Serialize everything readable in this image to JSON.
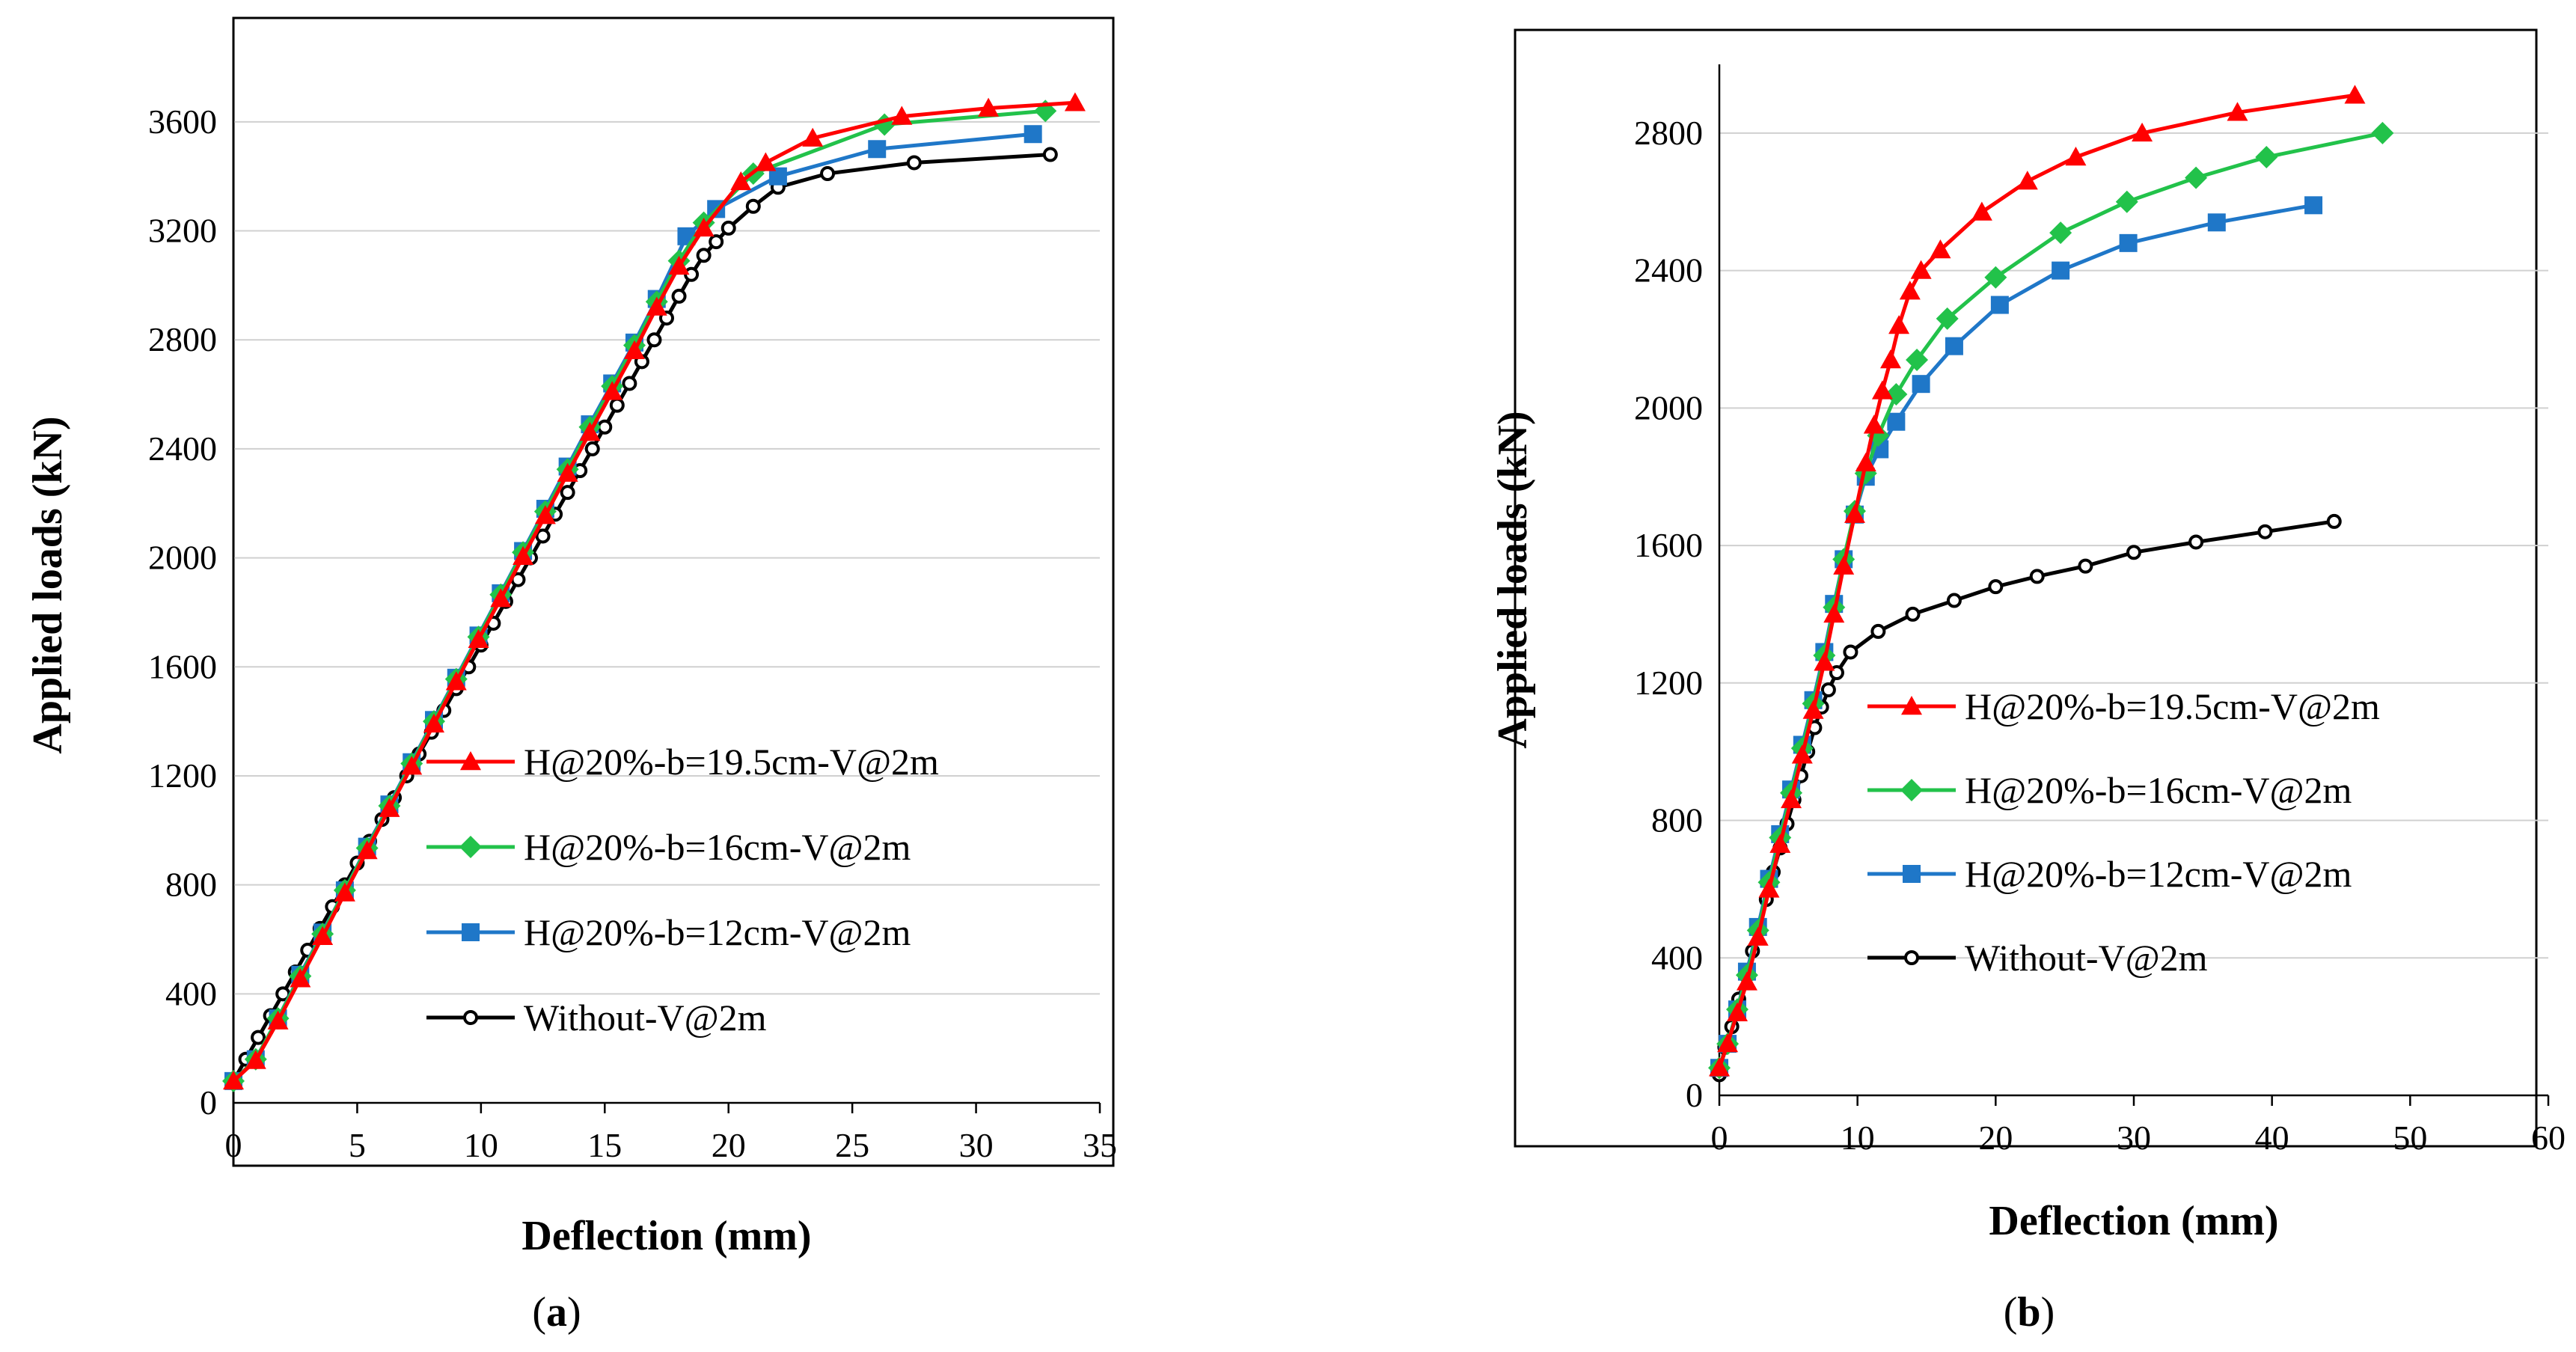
{
  "chart_data": [
    {
      "type": "line",
      "panel_label": "a",
      "xlabel": "Deflection (mm)",
      "ylabel": "Applied loads (kN)",
      "xlim": [
        0,
        35
      ],
      "ylim": [
        0,
        3800
      ],
      "xticks": [
        0,
        5,
        10,
        15,
        20,
        25,
        30,
        35
      ],
      "yticks": [
        0,
        400,
        800,
        1200,
        1600,
        2000,
        2400,
        2800,
        3200,
        3600
      ],
      "grid": "horizontal",
      "legend_position": "bottom-right",
      "series": [
        {
          "name": "H@20%-b=19.5cm-V@2m",
          "color": "#ff0000",
          "marker": "triangle",
          "x": [
            0,
            0.9,
            1.8,
            2.7,
            3.6,
            4.5,
            5.4,
            6.3,
            7.2,
            8.1,
            9.0,
            9.9,
            10.8,
            11.7,
            12.6,
            13.5,
            14.4,
            15.3,
            16.2,
            17.1,
            18.0,
            19.0,
            20.5,
            21.5,
            23.4,
            27.0,
            30.5,
            34.0
          ],
          "y": [
            80,
            155,
            300,
            455,
            610,
            770,
            925,
            1080,
            1235,
            1390,
            1545,
            1700,
            1850,
            2005,
            2155,
            2310,
            2460,
            2610,
            2760,
            2920,
            3070,
            3210,
            3380,
            3450,
            3540,
            3620,
            3650,
            3670
          ]
        },
        {
          "name": "H@20%-b=16cm-V@2m",
          "color": "#22c24a",
          "marker": "diamond",
          "x": [
            0,
            0.9,
            1.8,
            2.7,
            3.6,
            4.5,
            5.4,
            6.3,
            7.2,
            8.1,
            9.0,
            9.9,
            10.8,
            11.7,
            12.6,
            13.5,
            14.4,
            15.3,
            16.2,
            17.1,
            18.0,
            19.0,
            21.0,
            26.3,
            32.8
          ],
          "y": [
            80,
            160,
            310,
            465,
            620,
            780,
            935,
            1090,
            1245,
            1400,
            1555,
            1710,
            1865,
            2020,
            2170,
            2325,
            2480,
            2630,
            2780,
            2940,
            3090,
            3230,
            3410,
            3590,
            3640
          ]
        },
        {
          "name": "H@20%-b=12cm-V@2m",
          "color": "#1f77c8",
          "marker": "square",
          "x": [
            0,
            0.9,
            1.8,
            2.7,
            3.6,
            4.5,
            5.4,
            6.3,
            7.2,
            8.1,
            9.0,
            9.9,
            10.8,
            11.7,
            12.6,
            13.5,
            14.4,
            15.3,
            16.2,
            17.1,
            18.3,
            19.5,
            22.0,
            26.0,
            32.3
          ],
          "y": [
            80,
            160,
            310,
            470,
            625,
            780,
            940,
            1095,
            1250,
            1405,
            1560,
            1715,
            1870,
            2025,
            2180,
            2335,
            2490,
            2640,
            2790,
            2950,
            3180,
            3280,
            3400,
            3500,
            3555
          ]
        },
        {
          "name": "Without-V@2m",
          "color": "#000000",
          "marker": "circle",
          "x": [
            0,
            0.5,
            1.0,
            1.5,
            2.0,
            2.5,
            3.0,
            3.5,
            4.0,
            4.5,
            5.0,
            5.5,
            6.0,
            6.5,
            7.0,
            7.5,
            8.0,
            8.5,
            9.0,
            9.5,
            10.0,
            10.5,
            11.0,
            11.5,
            12.0,
            12.5,
            13.0,
            13.5,
            14.0,
            14.5,
            15.0,
            15.5,
            16.0,
            16.5,
            17.0,
            17.5,
            18.0,
            18.5,
            19.0,
            19.5,
            20.0,
            21.0,
            22.0,
            24.0,
            27.5,
            33.0
          ],
          "y": [
            80,
            160,
            240,
            320,
            400,
            480,
            560,
            640,
            720,
            800,
            880,
            960,
            1040,
            1120,
            1200,
            1280,
            1360,
            1440,
            1520,
            1600,
            1680,
            1760,
            1840,
            1920,
            2000,
            2080,
            2160,
            2240,
            2320,
            2400,
            2480,
            2560,
            2640,
            2720,
            2800,
            2880,
            2960,
            3040,
            3110,
            3160,
            3210,
            3290,
            3360,
            3410,
            3450,
            3480
          ]
        }
      ]
    },
    {
      "type": "line",
      "panel_label": "b",
      "xlabel": "Deflection (mm)",
      "ylabel": "Applied loads (kN)",
      "xlim": [
        0,
        60
      ],
      "ylim": [
        0,
        3000
      ],
      "xticks": [
        0,
        10,
        20,
        30,
        40,
        50,
        60
      ],
      "yticks": [
        0,
        400,
        800,
        1200,
        1600,
        2000,
        2400,
        2800
      ],
      "grid": "horizontal",
      "legend_position": "bottom-right",
      "series": [
        {
          "name": "H@20%-b=19.5cm-V@2m",
          "color": "#ff0000",
          "marker": "triangle",
          "x": [
            0,
            0.6,
            1.3,
            2.0,
            2.8,
            3.6,
            4.4,
            5.2,
            6.0,
            6.8,
            7.6,
            8.3,
            9.0,
            9.8,
            10.6,
            11.2,
            11.8,
            12.4,
            13.0,
            13.8,
            14.6,
            16.0,
            19.0,
            22.3,
            25.8,
            30.6,
            37.5,
            46.0
          ],
          "y": [
            80,
            150,
            240,
            330,
            460,
            600,
            730,
            860,
            990,
            1120,
            1260,
            1400,
            1540,
            1690,
            1840,
            1950,
            2050,
            2140,
            2240,
            2340,
            2400,
            2460,
            2570,
            2660,
            2730,
            2800,
            2860,
            2910
          ]
        },
        {
          "name": "H@20%-b=16cm-V@2m",
          "color": "#22c24a",
          "marker": "diamond",
          "x": [
            0,
            0.6,
            1.3,
            2.0,
            2.8,
            3.6,
            4.4,
            5.2,
            6.0,
            6.8,
            7.6,
            8.3,
            9.0,
            9.8,
            10.6,
            11.5,
            12.8,
            14.3,
            16.5,
            20.0,
            24.7,
            29.5,
            34.5,
            39.6,
            48.0
          ],
          "y": [
            80,
            150,
            250,
            350,
            480,
            620,
            750,
            880,
            1010,
            1140,
            1280,
            1420,
            1560,
            1700,
            1810,
            1920,
            2040,
            2140,
            2260,
            2380,
            2510,
            2600,
            2670,
            2730,
            2800
          ]
        },
        {
          "name": "H@20%-b=12cm-V@2m",
          "color": "#1f77c8",
          "marker": "square",
          "x": [
            0,
            0.6,
            1.3,
            2.0,
            2.8,
            3.6,
            4.4,
            5.2,
            6.0,
            6.8,
            7.6,
            8.3,
            9.0,
            9.8,
            10.6,
            11.6,
            12.8,
            14.6,
            17.0,
            20.3,
            24.7,
            29.6,
            36.0,
            43.0
          ],
          "y": [
            80,
            150,
            250,
            360,
            490,
            630,
            760,
            890,
            1020,
            1150,
            1290,
            1430,
            1560,
            1690,
            1800,
            1880,
            1960,
            2070,
            2180,
            2300,
            2400,
            2480,
            2540,
            2590
          ]
        },
        {
          "name": "Without-V@2m",
          "color": "#000000",
          "marker": "circle",
          "x": [
            0,
            0.4,
            0.9,
            1.4,
            1.9,
            2.4,
            2.9,
            3.4,
            3.9,
            4.4,
            4.9,
            5.4,
            5.9,
            6.4,
            6.9,
            7.4,
            7.9,
            8.5,
            9.5,
            11.5,
            14.0,
            17.0,
            20.0,
            23.0,
            26.5,
            30.0,
            34.5,
            39.5,
            44.5
          ],
          "y": [
            60,
            140,
            200,
            280,
            350,
            420,
            490,
            570,
            650,
            720,
            790,
            860,
            930,
            1000,
            1070,
            1130,
            1180,
            1230,
            1290,
            1350,
            1400,
            1440,
            1480,
            1510,
            1540,
            1580,
            1610,
            1640,
            1670
          ]
        }
      ]
    }
  ]
}
